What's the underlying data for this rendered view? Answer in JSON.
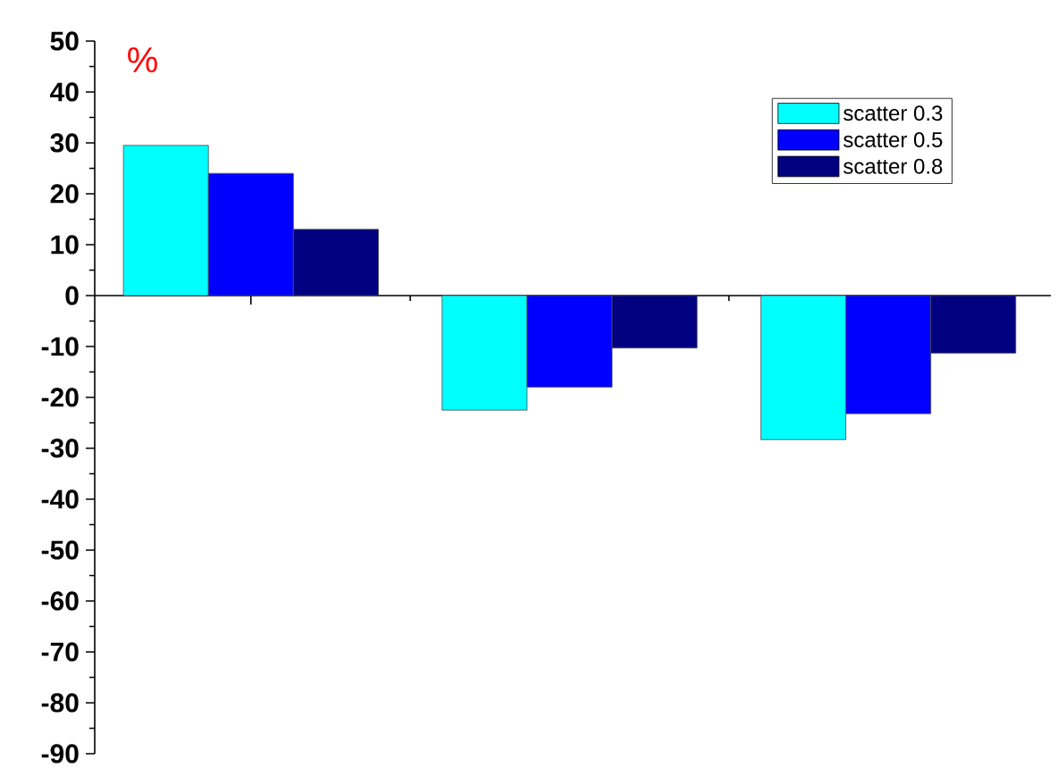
{
  "chart_data": {
    "type": "bar",
    "ylabel": "%",
    "categories": [
      null,
      null,
      null
    ],
    "series": [
      {
        "name": "scatter 0.3",
        "color": "#00ffff",
        "values": [
          29.5,
          -22.5,
          -28.3
        ]
      },
      {
        "name": "scatter 0.5",
        "color": "#0000ff",
        "values": [
          24,
          -18,
          -23.2
        ]
      },
      {
        "name": "scatter 0.8",
        "color": "#000080",
        "values": [
          13,
          -10.3,
          -11.3
        ]
      }
    ],
    "ylim": [
      -90,
      50
    ],
    "yticks": [
      -90,
      -80,
      -70,
      -60,
      -50,
      -40,
      -30,
      -20,
      -10,
      0,
      10,
      20,
      30,
      40,
      50
    ],
    "legend": "top right",
    "tick_labels": "y"
  }
}
